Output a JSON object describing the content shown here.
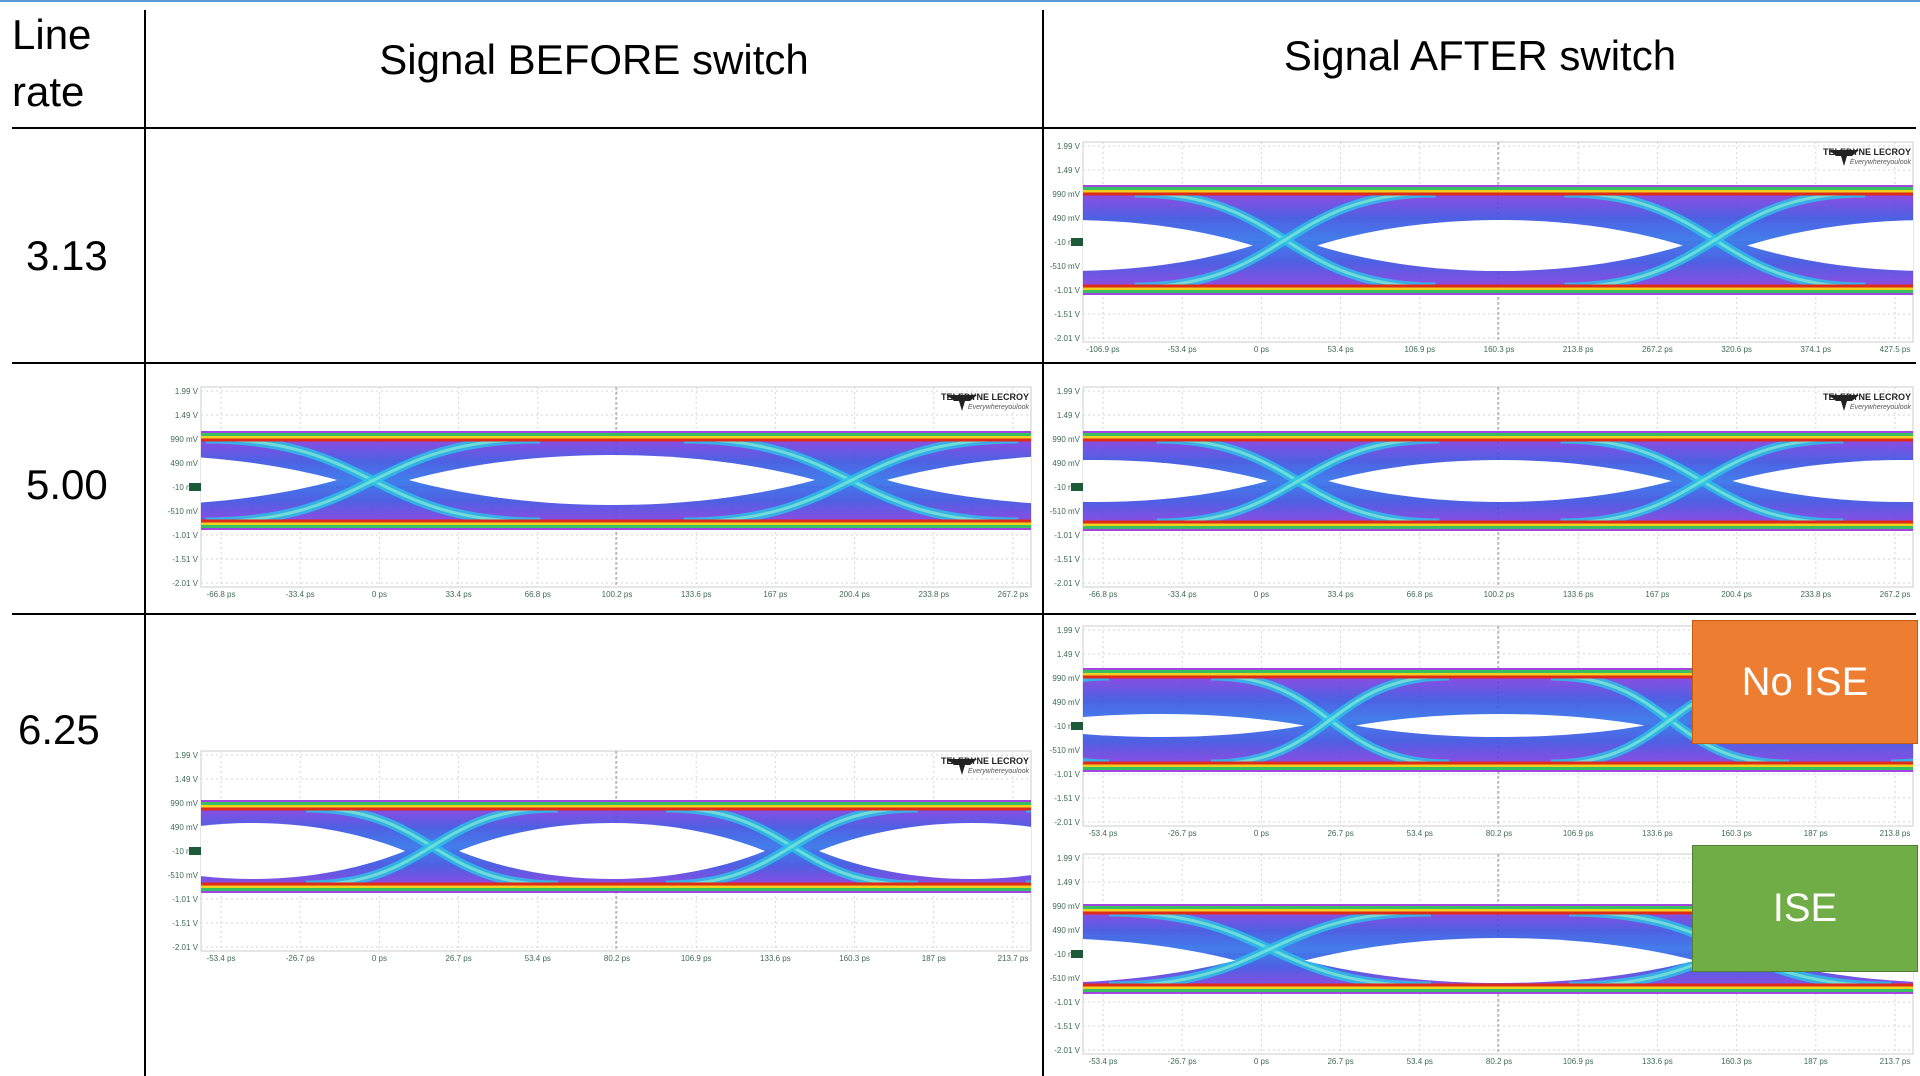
{
  "table": {
    "header": [
      "Line rate",
      "Signal BEFORE switch",
      "Signal AFTER switch"
    ],
    "rows": [
      {
        "rate": "3.13"
      },
      {
        "rate": "5.00"
      },
      {
        "rate": "6.25"
      }
    ]
  },
  "scope_common": {
    "y_labels": [
      "1.99 V",
      "1.49 V",
      "990 mV",
      "490 mV",
      "-10 mV",
      "-510 mV",
      "-1.01 V",
      "-1.51 V",
      "-2.01 V"
    ],
    "logo": "TELEDYNE LECROY",
    "tagline": "Everywhereyoulook"
  },
  "scopes": [
    {
      "x_labels": [
        "-106.9 ps",
        "-53.4 ps",
        "0 ps",
        "53.4 ps",
        "106.9 ps",
        "160.3 ps",
        "213.8 ps",
        "267.2 ps",
        "320.6 ps",
        "374.1 ps",
        "427.5 ps"
      ]
    },
    {
      "x_labels": [
        "-66.8 ps",
        "-33.4 ps",
        "0 ps",
        "33.4 ps",
        "66.8 ps",
        "100.2 ps",
        "133.6 ps",
        "167 ps",
        "200.4 ps",
        "233.8 ps",
        "267.2 ps"
      ]
    },
    {
      "x_labels": [
        "-66.8 ps",
        "-33.4 ps",
        "0 ps",
        "33.4 ps",
        "66.8 ps",
        "100.2 ps",
        "133.6 ps",
        "167 ps",
        "200.4 ps",
        "233.8 ps",
        "267.2 ps"
      ]
    },
    {
      "x_labels": [
        "-53.4 ps",
        "-26.7 ps",
        "0 ps",
        "26.7 ps",
        "53.4 ps",
        "80.2 ps",
        "106.9 ps",
        "133.6 ps",
        "160.3 ps",
        "187 ps",
        "213.7 ps"
      ]
    },
    {
      "x_labels": [
        "-53.4 ps",
        "-26.7 ps",
        "0 ps",
        "26.7 ps",
        "53.4 ps",
        "80.2 ps",
        "106.9 ps",
        "133.6 ps",
        "160.3 ps",
        "187 ps",
        "213.8 ps"
      ],
      "badge": "No ISE"
    },
    {
      "x_labels": [
        "-53.4 ps",
        "-26.7 ps",
        "0 ps",
        "26.7 ps",
        "53.4 ps",
        "80.2 ps",
        "106.9 ps",
        "133.6 ps",
        "160.3 ps",
        "187 ps",
        "213.7 ps"
      ],
      "badge": "ISE"
    }
  ]
}
